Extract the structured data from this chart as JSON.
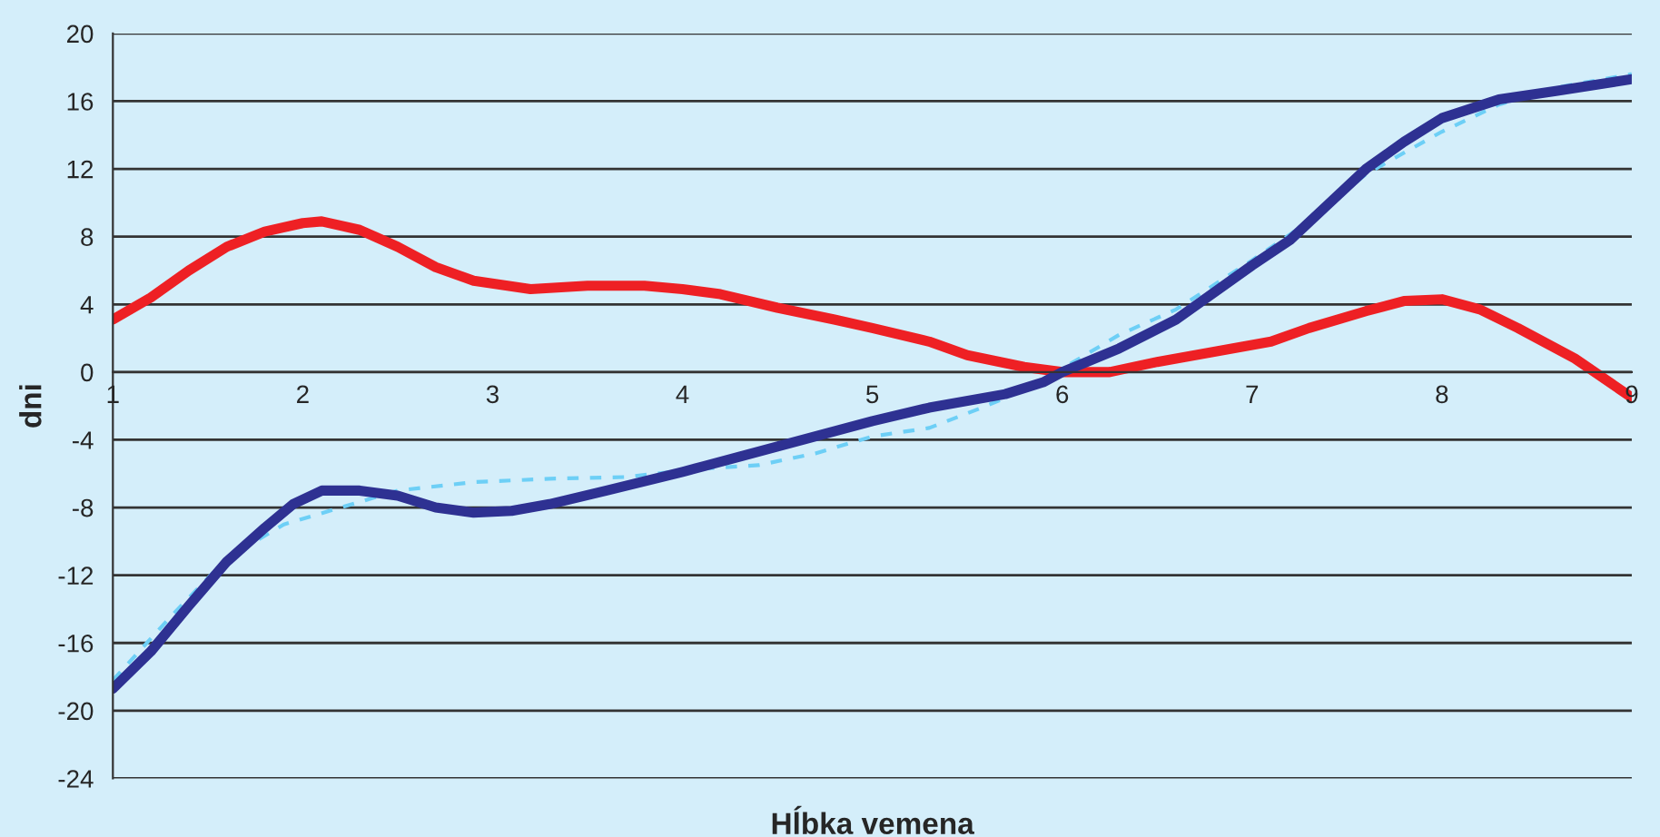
{
  "chart_data": {
    "type": "line",
    "xlabel": "Hĺbka vemena",
    "ylabel": "dni",
    "xlim": [
      1,
      9
    ],
    "ylim": [
      -24,
      20
    ],
    "xticks": [
      1,
      2,
      3,
      4,
      5,
      6,
      7,
      8,
      9
    ],
    "yticks": [
      -24,
      -20,
      -16,
      -12,
      -8,
      -4,
      0,
      4,
      8,
      12,
      16,
      20
    ],
    "grid": "y",
    "marker": "none",
    "series": [
      {
        "color": "#ee2024",
        "line_style": "solid",
        "x": [
          1,
          1.2,
          1.4,
          1.6,
          1.8,
          2.0,
          2.1,
          2.3,
          2.5,
          2.7,
          2.9,
          3.2,
          3.5,
          3.8,
          4.0,
          4.2,
          4.5,
          4.8,
          5.0,
          5.3,
          5.5,
          5.8,
          6.0,
          6.25,
          6.5,
          6.8,
          7.1,
          7.3,
          7.6,
          7.8,
          8.0,
          8.2,
          8.4,
          8.7,
          9.0
        ],
        "values": [
          3.1,
          4.4,
          6.0,
          7.4,
          8.3,
          8.8,
          8.9,
          8.4,
          7.4,
          6.2,
          5.4,
          4.9,
          5.1,
          5.1,
          4.9,
          4.6,
          3.8,
          3.1,
          2.6,
          1.8,
          1.0,
          0.3,
          0.0,
          0.0,
          0.6,
          1.2,
          1.8,
          2.6,
          3.6,
          4.2,
          4.3,
          3.7,
          2.6,
          0.8,
          -1.5
        ]
      },
      {
        "color": "#6dcff6",
        "line_style": "dashed",
        "x": [
          1.0,
          1.3,
          1.6,
          1.9,
          2.2,
          2.5,
          2.9,
          3.3,
          3.7,
          4.1,
          4.4,
          4.7,
          5.0,
          5.3,
          5.6,
          5.85,
          6.0,
          6.3,
          6.6,
          7.0,
          7.3,
          7.6,
          8.0,
          8.3,
          8.6,
          9.0
        ],
        "values": [
          -18.2,
          -14.5,
          -11.0,
          -9.0,
          -8.0,
          -7.0,
          -6.5,
          -6.3,
          -6.2,
          -5.7,
          -5.5,
          -4.8,
          -3.8,
          -3.3,
          -2.0,
          -0.8,
          0.2,
          2.2,
          3.7,
          6.6,
          8.9,
          11.7,
          14.2,
          15.8,
          16.8,
          17.6
        ]
      },
      {
        "color": "#2e3192",
        "line_style": "solid",
        "x": [
          1.0,
          1.2,
          1.4,
          1.6,
          1.8,
          1.95,
          2.1,
          2.3,
          2.5,
          2.7,
          2.9,
          3.1,
          3.3,
          3.6,
          4.0,
          4.5,
          5.0,
          5.3,
          5.7,
          5.9,
          6.0,
          6.3,
          6.6,
          7.0,
          7.2,
          7.4,
          7.6,
          7.8,
          8.0,
          8.3,
          8.6,
          9.0
        ],
        "values": [
          -18.7,
          -16.5,
          -13.8,
          -11.2,
          -9.2,
          -7.8,
          -7.0,
          -7.0,
          -7.3,
          -8.0,
          -8.3,
          -8.2,
          -7.8,
          -7.0,
          -5.9,
          -4.4,
          -2.9,
          -2.1,
          -1.3,
          -0.6,
          0.0,
          1.4,
          3.1,
          6.3,
          7.8,
          9.9,
          12.0,
          13.6,
          15.0,
          16.1,
          16.6,
          17.3
        ]
      }
    ]
  }
}
